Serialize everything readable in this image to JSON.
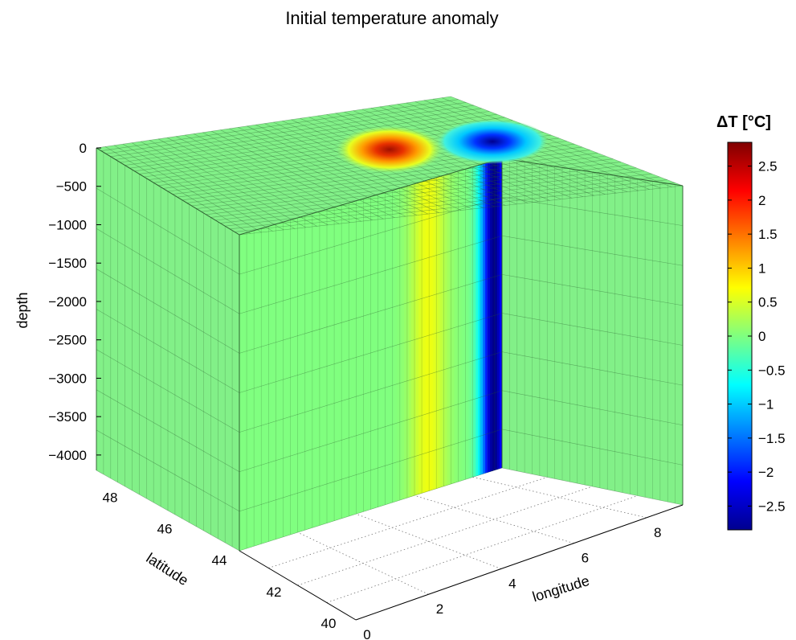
{
  "chart_data": {
    "type": "3d-volume-slice",
    "title": "Initial temperature anomaly",
    "zlabel": "depth",
    "ylabel": "latitude",
    "xlabel": "longitude",
    "z_ticks": [
      "0",
      "−500",
      "−1000",
      "−1500",
      "−2000",
      "−2500",
      "−3000",
      "−3500",
      "−4000"
    ],
    "z_tick_values": [
      0,
      -500,
      -1000,
      -1500,
      -2000,
      -2500,
      -3000,
      -3500,
      -4000
    ],
    "y_ticks": [
      "40",
      "42",
      "44",
      "46",
      "48"
    ],
    "y_tick_values": [
      40,
      42,
      44,
      46,
      48
    ],
    "x_ticks": [
      "0",
      "2",
      "4",
      "6",
      "8"
    ],
    "x_tick_values": [
      0,
      2,
      4,
      6,
      8
    ],
    "xlim": [
      0,
      9
    ],
    "ylim": [
      40,
      49.5
    ],
    "zlim": [
      -4200,
      0
    ],
    "colorbar": {
      "label": "ΔT [°C]",
      "ticks": [
        "2.5",
        "2",
        "1.5",
        "1",
        "0.5",
        "0",
        "−0.5",
        "−1",
        "−1.5",
        "−2",
        "−2.5"
      ],
      "tick_values": [
        2.5,
        2,
        1.5,
        1,
        0.5,
        0,
        -0.5,
        -1,
        -1.5,
        -2,
        -2.5
      ],
      "range": [
        -2.85,
        2.85
      ],
      "colormap": "jet"
    },
    "anomalies": [
      {
        "sign": "warm",
        "peak": 2.8,
        "lon": 3.2,
        "lat": 45.0
      },
      {
        "sign": "cold",
        "peak": -2.8,
        "lon": 4.6,
        "lat": 45.0
      }
    ],
    "background_value": 0,
    "background_color": "#82f088",
    "mesh_color": "#2b5a2e"
  }
}
